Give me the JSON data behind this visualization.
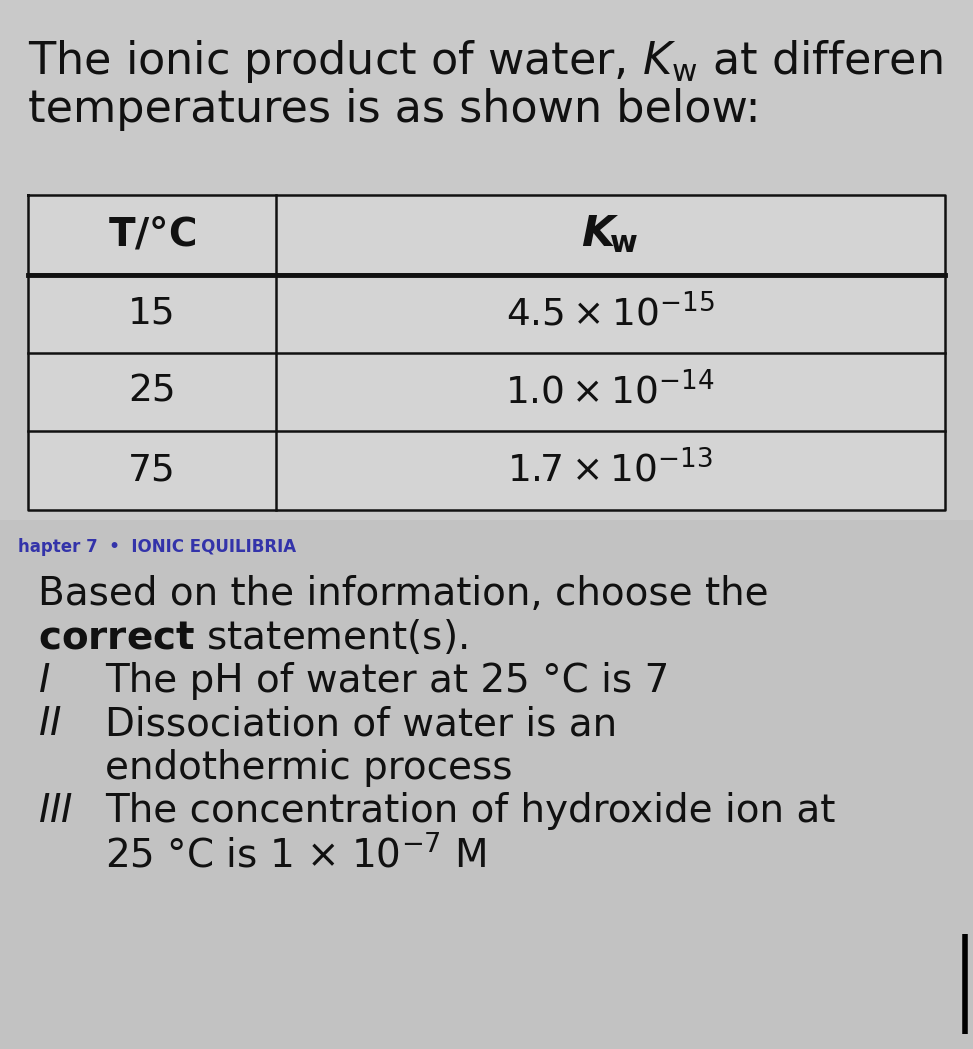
{
  "title_line1": "The ionic product of water, $K_{\\mathrm{w}}$ at differen",
  "title_line2": "temperatures is as shown below:",
  "section_label": "hapter 7  •  IONIC EQUILIBRIA",
  "para1": "Based on the information, choose the",
  "para2": "correct statement(s).",
  "stmt_I_num": "I",
  "stmt_I_text": "The pH of water at 25 °C is 7",
  "stmt_II_num": "II",
  "stmt_II_line1": "Dissociation of water is an",
  "stmt_II_line2": "endothermic process",
  "stmt_III_num": "III",
  "stmt_III_line1": "The concentration of hydroxide ion at",
  "stmt_III_line2": "25 °C is 1 × 10⁻⁷ M",
  "top_bg": "#c9c9c9",
  "bottom_bg": "#c2c2c2",
  "table_line_color": "#111111",
  "text_color": "#111111",
  "section_color": "#3333aa",
  "title_fontsize": 32,
  "table_header_fontsize": 28,
  "table_data_fontsize": 27,
  "body_fontsize": 28,
  "small_fontsize": 12,
  "fig_width": 9.73,
  "fig_height": 10.49,
  "dpi": 100
}
